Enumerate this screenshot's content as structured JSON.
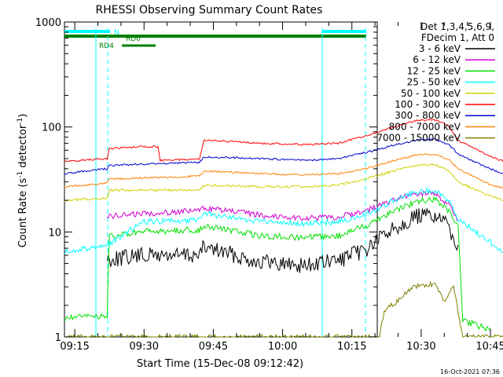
{
  "chart_data": {
    "type": "line",
    "title": "RHESSI Observing Summary Count Rates",
    "xlabel": "Start Time (15-Dec-08 09:12:42)",
    "ylabel": "Count Rate (s⁻¹ detector⁻¹)",
    "ylabel_parts": {
      "base": "Count Rate (s",
      "sup1": "-1",
      "mid": " detector",
      "sup2": "-1",
      "end": ")"
    },
    "y_scale": "log",
    "ylim": [
      1,
      1000
    ],
    "yticks": [
      {
        "value": 1,
        "label": "1"
      },
      {
        "value": 10,
        "label": "10"
      },
      {
        "value": 100,
        "label": "100"
      },
      {
        "value": 1000,
        "label": "1000"
      }
    ],
    "xlim": [
      "09:12:42",
      "10:50:00"
    ],
    "xticks": [
      "09:15",
      "09:30",
      "09:45",
      "10:00",
      "10:15",
      "10:30",
      "10:45"
    ],
    "timestamp": "16-Oct-2021 07:36",
    "legend_header": [
      "Det 1,3,4,5,6,9,",
      "FDecim 1, Att 0"
    ],
    "legend_position": "right",
    "series": [
      {
        "name": "3 - 6 keV",
        "color": "#000000",
        "points": [
          [
            "09:22",
            5.5
          ],
          [
            "09:30",
            6
          ],
          [
            "09:42",
            6
          ],
          [
            "09:43",
            7.2
          ],
          [
            "09:55",
            5.2
          ],
          [
            "10:05",
            4.8
          ],
          [
            "10:12",
            5.3
          ],
          [
            "10:18",
            6.8
          ],
          [
            "10:24",
            11
          ],
          [
            "10:29",
            14
          ],
          [
            "10:33",
            14.5
          ],
          [
            "10:36",
            11
          ],
          [
            "10:38",
            7.5
          ]
        ]
      },
      {
        "name": "6 - 12 keV",
        "color": "#d000d0",
        "points": [
          [
            "09:22",
            14
          ],
          [
            "09:30",
            15
          ],
          [
            "09:42",
            16
          ],
          [
            "09:43",
            17
          ],
          [
            "09:55",
            14.5
          ],
          [
            "10:05",
            13.5
          ],
          [
            "10:12",
            13.8
          ],
          [
            "10:18",
            16
          ],
          [
            "10:24",
            20
          ],
          [
            "10:29",
            23
          ],
          [
            "10:33",
            23.5
          ],
          [
            "10:36",
            18
          ],
          [
            "10:38",
            13
          ]
        ]
      },
      {
        "name": "12 - 25 keV",
        "color": "#00e000",
        "points": [
          [
            "09:12:42",
            1.5
          ],
          [
            "09:22",
            1.6
          ],
          [
            "09:22:30",
            9
          ],
          [
            "09:30",
            10
          ],
          [
            "09:42",
            10.5
          ],
          [
            "09:43",
            11.5
          ],
          [
            "09:55",
            9.2
          ],
          [
            "10:05",
            8.8
          ],
          [
            "10:12",
            9.2
          ],
          [
            "10:18",
            11.5
          ],
          [
            "10:24",
            16
          ],
          [
            "10:29",
            19.5
          ],
          [
            "10:33",
            20.5
          ],
          [
            "10:36",
            16
          ],
          [
            "10:38",
            11
          ],
          [
            "10:39",
            1.4
          ],
          [
            "10:45",
            1.2
          ]
        ]
      },
      {
        "name": "25 - 50 keV",
        "color": "#00ffff",
        "points": [
          [
            "09:12:42",
            6.5
          ],
          [
            "09:22",
            7.5
          ],
          [
            "09:30",
            12.5
          ],
          [
            "09:42",
            13
          ],
          [
            "09:43",
            15
          ],
          [
            "09:55",
            12.5
          ],
          [
            "10:05",
            12
          ],
          [
            "10:12",
            12.5
          ],
          [
            "10:18",
            14.5
          ],
          [
            "10:24",
            20
          ],
          [
            "10:29",
            24
          ],
          [
            "10:33",
            25
          ],
          [
            "10:36",
            20
          ],
          [
            "10:38",
            13
          ],
          [
            "10:45",
            8
          ],
          [
            "10:48",
            6.5
          ]
        ]
      },
      {
        "name": "50 - 100 keV",
        "color": "#d0d000",
        "points": [
          [
            "09:12:42",
            20
          ],
          [
            "09:22",
            21
          ],
          [
            "09:22:30",
            25
          ],
          [
            "09:30",
            25
          ],
          [
            "09:42",
            25
          ],
          [
            "09:43",
            28
          ],
          [
            "09:55",
            27
          ],
          [
            "10:05",
            27
          ],
          [
            "10:12",
            28
          ],
          [
            "10:18",
            32
          ],
          [
            "10:24",
            38
          ],
          [
            "10:29",
            43
          ],
          [
            "10:33",
            44
          ],
          [
            "10:36",
            38
          ],
          [
            "10:38",
            30
          ],
          [
            "10:45",
            22
          ],
          [
            "10:48",
            20
          ]
        ]
      },
      {
        "name": "100 - 300 keV",
        "color": "#ff0000",
        "points": [
          [
            "09:12:42",
            47
          ],
          [
            "09:22",
            50
          ],
          [
            "09:22:30",
            62
          ],
          [
            "09:30",
            65
          ],
          [
            "09:33",
            65
          ],
          [
            "09:33:30",
            48
          ],
          [
            "09:42",
            50
          ],
          [
            "09:43",
            75
          ],
          [
            "09:55",
            70
          ],
          [
            "10:05",
            68
          ],
          [
            "10:12",
            70
          ],
          [
            "10:18",
            82
          ],
          [
            "10:24",
            100
          ],
          [
            "10:29",
            115
          ],
          [
            "10:33",
            117
          ],
          [
            "10:36",
            102
          ],
          [
            "10:38",
            75
          ],
          [
            "10:45",
            52
          ],
          [
            "10:48",
            47
          ]
        ]
      },
      {
        "name": "300 - 800 keV",
        "color": "#0000d0",
        "points": [
          [
            "09:12:42",
            36
          ],
          [
            "09:22",
            40
          ],
          [
            "09:22:30",
            43
          ],
          [
            "09:33",
            45
          ],
          [
            "09:42",
            46
          ],
          [
            "09:43",
            52
          ],
          [
            "09:55",
            50
          ],
          [
            "10:05",
            48
          ],
          [
            "10:12",
            50
          ],
          [
            "10:18",
            57
          ],
          [
            "10:24",
            67
          ],
          [
            "10:29",
            75
          ],
          [
            "10:33",
            76
          ],
          [
            "10:36",
            68
          ],
          [
            "10:38",
            55
          ],
          [
            "10:45",
            40
          ],
          [
            "10:48",
            35
          ]
        ]
      },
      {
        "name": "800 - 7000 keV",
        "color": "#ff8000",
        "points": [
          [
            "09:12:42",
            27
          ],
          [
            "09:22",
            29
          ],
          [
            "09:22:30",
            32
          ],
          [
            "09:33",
            33
          ],
          [
            "09:42",
            34
          ],
          [
            "09:43",
            38
          ],
          [
            "09:55",
            36
          ],
          [
            "10:05",
            35
          ],
          [
            "10:12",
            36
          ],
          [
            "10:18",
            40
          ],
          [
            "10:24",
            48
          ],
          [
            "10:29",
            54
          ],
          [
            "10:33",
            55
          ],
          [
            "10:36",
            49
          ],
          [
            "10:38",
            40
          ],
          [
            "10:45",
            28
          ],
          [
            "10:48",
            26
          ]
        ]
      },
      {
        "name": "7000 - 15000 keV",
        "color": "#808000",
        "points": [
          [
            "09:12:42",
            1
          ],
          [
            "10:21",
            1
          ],
          [
            "10:22",
            1.8
          ],
          [
            "10:25",
            2.2
          ],
          [
            "10:28",
            3
          ],
          [
            "10:33",
            3.2
          ],
          [
            "10:35",
            2.2
          ],
          [
            "10:37",
            3
          ],
          [
            "10:39",
            1
          ],
          [
            "10:48",
            1
          ]
        ]
      }
    ],
    "annotations": [
      {
        "label": "N",
        "color": "#00ffff"
      },
      {
        "label": "RD0",
        "color": "#008000"
      },
      {
        "label": "RD4",
        "color": "#008000"
      }
    ]
  }
}
